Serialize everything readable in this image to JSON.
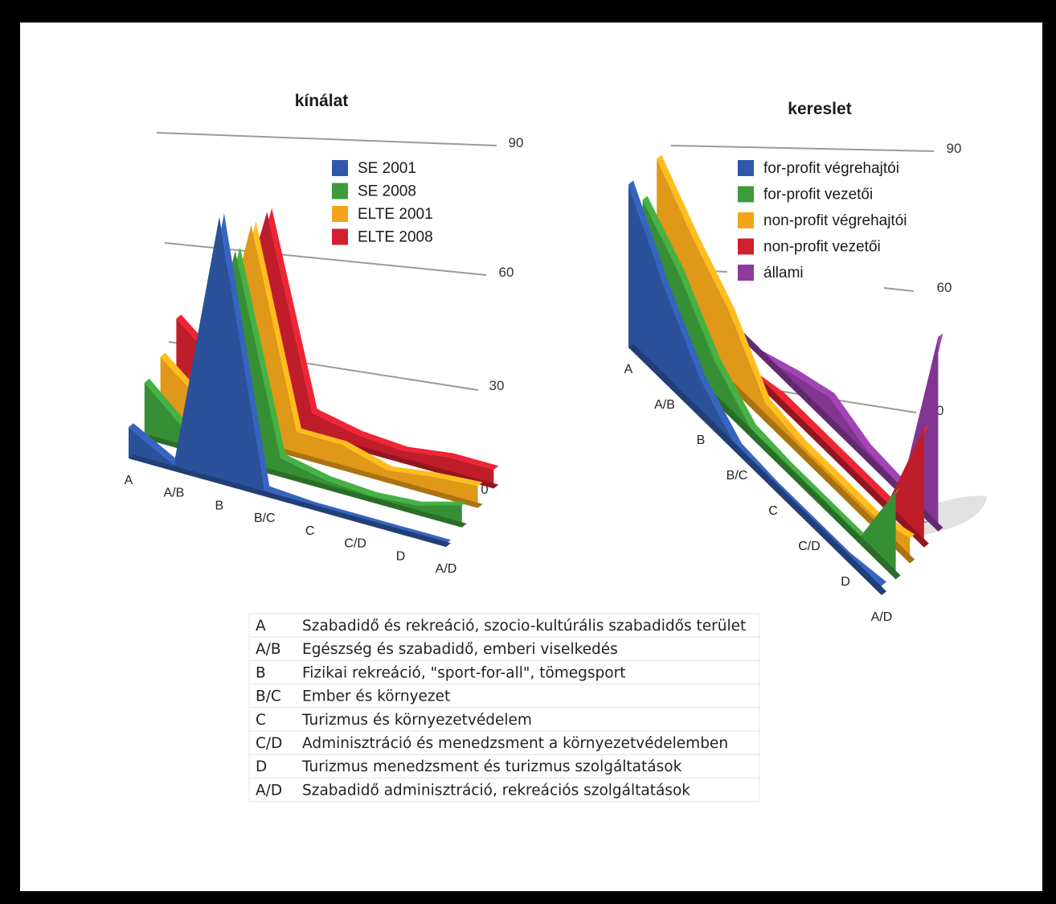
{
  "chart_data": [
    {
      "type": "area",
      "title": "kínálat",
      "categories": [
        "A",
        "A/B",
        "B",
        "B/C",
        "C",
        "C/D",
        "D",
        "A/D"
      ],
      "yticks": [
        0,
        30,
        60,
        90
      ],
      "ylim": [
        0,
        90
      ],
      "legend_position": "top-right",
      "series": [
        {
          "name": "SE 2001",
          "color": "#2f58a8",
          "values": [
            10,
            2,
            85,
            2,
            1,
            1,
            1,
            1
          ]
        },
        {
          "name": "SE 2008",
          "color": "#3c9b3a",
          "values": [
            18,
            5,
            68,
            6,
            3,
            2,
            3,
            7
          ]
        },
        {
          "name": "ELTE 2001",
          "color": "#f2a51a",
          "values": [
            20,
            8,
            70,
            8,
            8,
            4,
            6,
            7
          ]
        },
        {
          "name": "ELTE 2008",
          "color": "#d11f2e",
          "values": [
            26,
            14,
            68,
            8,
            5,
            4,
            6,
            6
          ]
        }
      ]
    },
    {
      "type": "area",
      "title": "kereslet",
      "categories": [
        "A",
        "A/B",
        "B",
        "B/C",
        "C",
        "C/D",
        "D",
        "A/D"
      ],
      "yticks": [
        0,
        30,
        60,
        90
      ],
      "ylim": [
        0,
        90
      ],
      "legend_position": "top-right",
      "series": [
        {
          "name": "for-profit végrehajtói",
          "color": "#2f58a8",
          "values": [
            52,
            30,
            12,
            2,
            1,
            1,
            1,
            3
          ]
        },
        {
          "name": "for-profit vezetői",
          "color": "#3c9b3a",
          "values": [
            42,
            30,
            13,
            3,
            2,
            2,
            2,
            28
          ]
        },
        {
          "name": "non-profit végrehajtói",
          "color": "#f2a51a",
          "values": [
            50,
            36,
            24,
            6,
            4,
            4,
            4,
            8
          ]
        },
        {
          "name": "non-profit vezetői",
          "color": "#d11f2e",
          "values": [
            0,
            0,
            0,
            3,
            3,
            3,
            3,
            38
          ]
        },
        {
          "name": "állami",
          "color": "#8e3a9f",
          "values": [
            0,
            0,
            0,
            5,
            9,
            4,
            3,
            62
          ]
        }
      ]
    }
  ],
  "category_legend": [
    {
      "code": "A",
      "text": "Szabadidő és rekreáció, szocio-kultúrális szabadidős terület"
    },
    {
      "code": "A/B",
      "text": "Egészség és szabadidő, emberi viselkedés"
    },
    {
      "code": "B",
      "text": "Fizikai rekreáció, \"sport-for-all\", tömegsport"
    },
    {
      "code": "B/C",
      "text": "Ember és környezet"
    },
    {
      "code": "C",
      "text": "Turizmus és környezetvédelem"
    },
    {
      "code": "C/D",
      "text": "Adminisztráció és menedzsment a környezetvédelemben"
    },
    {
      "code": "D",
      "text": "Turizmus menedzsment és turizmus szolgáltatások"
    },
    {
      "code": "A/D",
      "text": "Szabadidő adminisztráció, rekreációs szolgáltatások"
    }
  ]
}
